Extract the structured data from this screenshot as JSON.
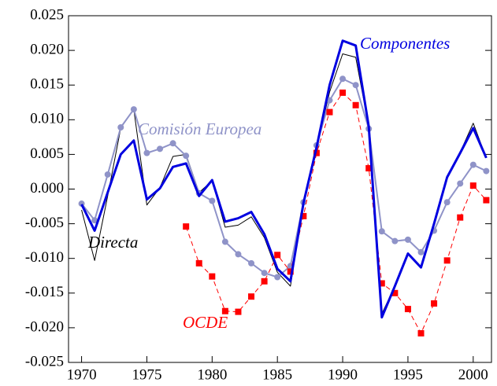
{
  "chart_data": {
    "type": "line",
    "x": [
      1970,
      1971,
      1972,
      1973,
      1974,
      1975,
      1976,
      1977,
      1978,
      1979,
      1980,
      1981,
      1982,
      1983,
      1984,
      1985,
      1986,
      1987,
      1988,
      1989,
      1990,
      1991,
      1992,
      1993,
      1994,
      1995,
      1996,
      1997,
      1998,
      1999,
      2000,
      2001
    ],
    "xlim": [
      1969,
      2001.4
    ],
    "xticks": [
      1970,
      1975,
      1980,
      1985,
      1990,
      1995,
      2000
    ],
    "ylim": [
      -0.025,
      0.025
    ],
    "yticks": [
      {
        "value": 0.025,
        "label": "0.025"
      },
      {
        "value": 0.02,
        "label": "0.020"
      },
      {
        "value": 0.015,
        "label": "0.015"
      },
      {
        "value": 0.01,
        "label": "0.010"
      },
      {
        "value": 0.005,
        "label": "0.005"
      },
      {
        "value": 0,
        "label": "0.000"
      },
      {
        "value": -0.005,
        "label": "-0.005"
      },
      {
        "value": -0.01,
        "label": "-0.010"
      },
      {
        "value": -0.015,
        "label": "-0.015"
      },
      {
        "value": -0.02,
        "label": "-0.020"
      },
      {
        "value": -0.025,
        "label": "-0.025"
      }
    ],
    "series": [
      {
        "name": "Directa",
        "color": "#000000",
        "line_width": 1,
        "values": [
          -0.003,
          -0.0103,
          -0.001,
          0.0088,
          0.0115,
          -0.0023,
          0.0002,
          0.0047,
          0.005,
          -0.0005,
          0.0012,
          -0.0055,
          -0.0052,
          -0.004,
          -0.007,
          -0.012,
          -0.014,
          -0.002,
          0.006,
          0.014,
          0.0195,
          0.019,
          0.009,
          -0.018,
          -0.014,
          -0.0093,
          -0.0113,
          -0.005,
          0.0017,
          0.0053,
          0.0095,
          0.0045
        ]
      },
      {
        "name": "Comisión Europea",
        "color": "#8f93c8",
        "line_width": 2,
        "marker": "circle",
        "values": [
          -0.0021,
          -0.0045,
          0.0021,
          0.0089,
          0.0115,
          0.0052,
          0.0058,
          0.0066,
          0.0048,
          -0.0006,
          -0.0017,
          -0.0076,
          -0.0094,
          -0.0107,
          -0.0121,
          -0.0127,
          -0.0111,
          -0.0019,
          0.0063,
          0.0128,
          0.0159,
          0.015,
          0.0087,
          -0.0061,
          -0.0075,
          -0.0073,
          -0.0091,
          -0.006,
          -0.0019,
          0.0008,
          0.0035,
          0.0026
        ]
      },
      {
        "name": "OCDE",
        "color": "#ff0000",
        "line_width": 1,
        "line_style": "dashed",
        "marker": "square",
        "values": [
          null,
          null,
          null,
          null,
          null,
          null,
          null,
          null,
          -0.0054,
          -0.0107,
          -0.0126,
          -0.0176,
          -0.0177,
          -0.0155,
          -0.0133,
          -0.0095,
          -0.0119,
          -0.0039,
          0.0052,
          0.0111,
          0.0139,
          0.0121,
          0.003,
          -0.0136,
          -0.015,
          -0.0173,
          -0.0208,
          -0.0165,
          -0.0103,
          -0.0041,
          0.0005,
          -0.0016
        ]
      },
      {
        "name": "Componentes",
        "color": "#0000e0",
        "line_width": 3,
        "values": [
          -0.0022,
          -0.006,
          -0.0005,
          0.005,
          0.007,
          -0.0015,
          0.0001,
          0.0032,
          0.0037,
          -0.001,
          0.0013,
          -0.0047,
          -0.0042,
          -0.0033,
          -0.0065,
          -0.0115,
          -0.0133,
          -0.002,
          0.006,
          0.015,
          0.0214,
          0.0207,
          0.009,
          -0.0185,
          -0.014,
          -0.0093,
          -0.0113,
          -0.005,
          0.0017,
          0.0052,
          0.0088,
          0.0045
        ]
      }
    ]
  }
}
